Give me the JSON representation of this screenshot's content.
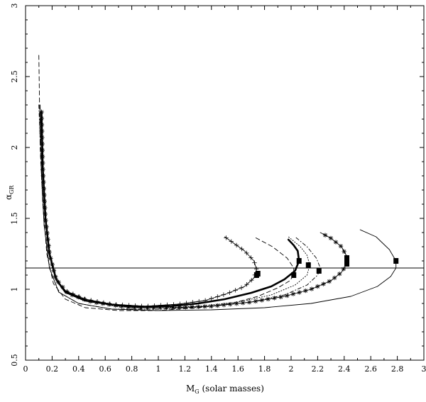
{
  "chart_data": {
    "type": "line",
    "title": "",
    "xlabel_main": "M",
    "xlabel_sub": "G",
    "xlabel_rest": " (solar masses)",
    "ylabel_main": "α",
    "ylabel_sub": "GR",
    "xlim": [
      0,
      3
    ],
    "ylim": [
      0.5,
      3
    ],
    "x_ticks": [
      "0",
      "0.2",
      "0.4",
      "0.6",
      "0.8",
      "1",
      "1.2",
      "1.4",
      "1.6",
      "1.8",
      "2",
      "2.2",
      "2.4",
      "2.6",
      "2.8",
      "3"
    ],
    "y_ticks": [
      "0.5",
      "1",
      "1.5",
      "2",
      "2.5",
      "3"
    ],
    "hline": 1.15,
    "series": [
      {
        "style": "plus",
        "points": [
          [
            0.12,
            2.25
          ],
          [
            0.13,
            1.85
          ],
          [
            0.15,
            1.5
          ],
          [
            0.18,
            1.25
          ],
          [
            0.23,
            1.07
          ],
          [
            0.3,
            0.99
          ],
          [
            0.45,
            0.93
          ],
          [
            0.65,
            0.895
          ],
          [
            0.9,
            0.88
          ],
          [
            1.15,
            0.895
          ],
          [
            1.35,
            0.92
          ],
          [
            1.52,
            0.97
          ],
          [
            1.65,
            1.02
          ],
          [
            1.72,
            1.08
          ],
          [
            1.74,
            1.14
          ],
          [
            1.72,
            1.2
          ],
          [
            1.65,
            1.27
          ],
          [
            1.5,
            1.37
          ]
        ]
      },
      {
        "style": "dashed",
        "points": [
          [
            0.1,
            2.65
          ],
          [
            0.11,
            2.0
          ],
          [
            0.13,
            1.6
          ],
          [
            0.16,
            1.25
          ],
          [
            0.21,
            1.04
          ],
          [
            0.3,
            0.93
          ],
          [
            0.45,
            0.87
          ],
          [
            0.7,
            0.85
          ],
          [
            1.0,
            0.85
          ],
          [
            1.3,
            0.87
          ],
          [
            1.55,
            0.9
          ],
          [
            1.75,
            0.95
          ],
          [
            1.9,
            1.01
          ],
          [
            1.99,
            1.06
          ],
          [
            2.02,
            1.1
          ],
          [
            2.02,
            1.15
          ],
          [
            1.97,
            1.22
          ],
          [
            1.86,
            1.3
          ],
          [
            1.72,
            1.37
          ]
        ]
      },
      {
        "style": "thick",
        "points": [
          [
            0.12,
            2.25
          ],
          [
            0.13,
            1.85
          ],
          [
            0.15,
            1.5
          ],
          [
            0.18,
            1.25
          ],
          [
            0.23,
            1.07
          ],
          [
            0.3,
            0.98
          ],
          [
            0.45,
            0.92
          ],
          [
            0.7,
            0.885
          ],
          [
            0.9,
            0.877
          ],
          [
            1.1,
            0.882
          ],
          [
            1.3,
            0.9
          ],
          [
            1.5,
            0.93
          ],
          [
            1.7,
            0.975
          ],
          [
            1.85,
            1.02
          ],
          [
            1.95,
            1.07
          ],
          [
            2.03,
            1.13
          ],
          [
            2.06,
            1.2
          ],
          [
            2.05,
            1.27
          ],
          [
            2.02,
            1.31
          ],
          [
            1.98,
            1.35
          ]
        ]
      },
      {
        "style": "dotted",
        "points": [
          [
            0.12,
            2.25
          ],
          [
            0.135,
            1.8
          ],
          [
            0.16,
            1.4
          ],
          [
            0.2,
            1.15
          ],
          [
            0.28,
            1.0
          ],
          [
            0.45,
            0.92
          ],
          [
            0.7,
            0.875
          ],
          [
            1.0,
            0.87
          ],
          [
            1.3,
            0.88
          ],
          [
            1.6,
            0.91
          ],
          [
            1.85,
            0.96
          ],
          [
            2.03,
            1.03
          ],
          [
            2.12,
            1.1
          ],
          [
            2.14,
            1.17
          ],
          [
            2.12,
            1.24
          ],
          [
            2.07,
            1.3
          ],
          [
            1.98,
            1.37
          ]
        ]
      },
      {
        "style": "dashdot",
        "points": [
          [
            0.1,
            2.3
          ],
          [
            0.12,
            1.8
          ],
          [
            0.14,
            1.45
          ],
          [
            0.18,
            1.15
          ],
          [
            0.25,
            0.98
          ],
          [
            0.4,
            0.9
          ],
          [
            0.65,
            0.86
          ],
          [
            1.0,
            0.86
          ],
          [
            1.35,
            0.875
          ],
          [
            1.7,
            0.91
          ],
          [
            1.95,
            0.96
          ],
          [
            2.12,
            1.03
          ],
          [
            2.2,
            1.1
          ],
          [
            2.22,
            1.15
          ],
          [
            2.19,
            1.22
          ],
          [
            2.12,
            1.3
          ],
          [
            2.03,
            1.37
          ]
        ]
      },
      {
        "style": "star",
        "points": [
          [
            0.12,
            2.25
          ],
          [
            0.13,
            1.85
          ],
          [
            0.15,
            1.5
          ],
          [
            0.18,
            1.25
          ],
          [
            0.23,
            1.07
          ],
          [
            0.32,
            0.97
          ],
          [
            0.5,
            0.91
          ],
          [
            0.8,
            0.87
          ],
          [
            1.1,
            0.87
          ],
          [
            1.4,
            0.88
          ],
          [
            1.7,
            0.91
          ],
          [
            1.95,
            0.95
          ],
          [
            2.15,
            1.0
          ],
          [
            2.3,
            1.06
          ],
          [
            2.38,
            1.12
          ],
          [
            2.42,
            1.18
          ],
          [
            2.42,
            1.23
          ],
          [
            2.38,
            1.3
          ],
          [
            2.3,
            1.36
          ],
          [
            2.22,
            1.4
          ]
        ]
      },
      {
        "style": "solid",
        "points": [
          [
            0.11,
            2.3
          ],
          [
            0.12,
            1.85
          ],
          [
            0.14,
            1.45
          ],
          [
            0.18,
            1.15
          ],
          [
            0.25,
            0.98
          ],
          [
            0.4,
            0.9
          ],
          [
            0.65,
            0.86
          ],
          [
            1.0,
            0.85
          ],
          [
            1.4,
            0.855
          ],
          [
            1.8,
            0.87
          ],
          [
            2.15,
            0.9
          ],
          [
            2.45,
            0.95
          ],
          [
            2.65,
            1.02
          ],
          [
            2.75,
            1.09
          ],
          [
            2.79,
            1.15
          ],
          [
            2.79,
            1.2
          ],
          [
            2.74,
            1.28
          ],
          [
            2.64,
            1.37
          ],
          [
            2.52,
            1.42
          ]
        ]
      }
    ],
    "markers": [
      [
        1.74,
        1.1
      ],
      [
        1.75,
        1.11
      ],
      [
        2.02,
        1.1
      ],
      [
        2.06,
        1.2
      ],
      [
        2.13,
        1.17
      ],
      [
        2.21,
        1.13
      ],
      [
        2.42,
        1.18
      ],
      [
        2.42,
        1.22
      ],
      [
        2.79,
        1.2
      ]
    ]
  }
}
